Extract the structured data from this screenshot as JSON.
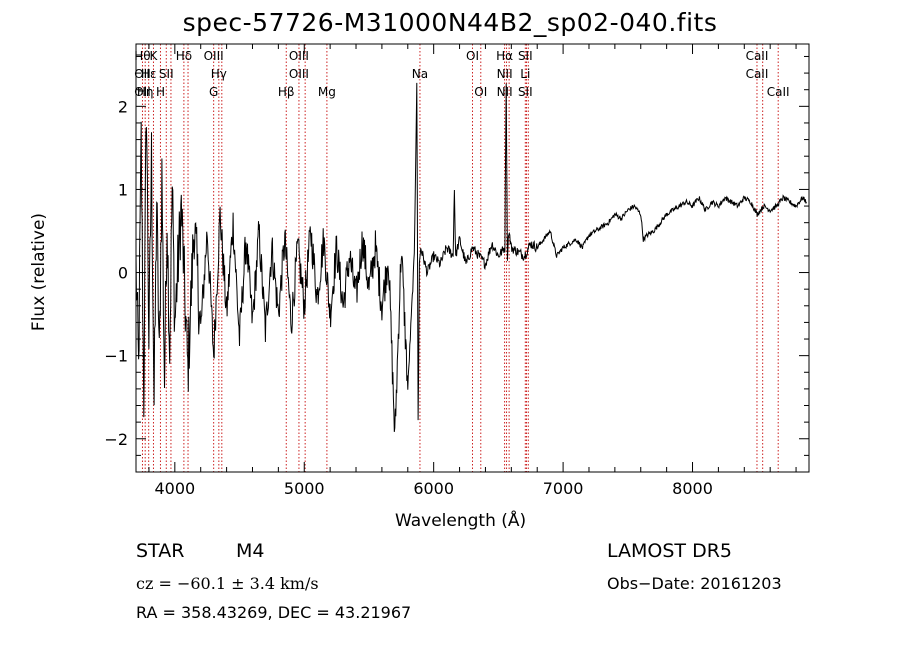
{
  "chart_data": {
    "type": "line",
    "title": "spec-57726-M31000N44B2_sp02-040.fits",
    "xlabel": "Wavelength (Å)",
    "ylabel": "Flux (relative)",
    "xlim": [
      3700,
      8900
    ],
    "ylim": [
      -2.4,
      2.75
    ],
    "xticks": [
      4000,
      5000,
      6000,
      7000,
      8000
    ],
    "yticks": [
      -2,
      -1,
      0,
      1,
      2
    ],
    "grid": false,
    "series": [
      {
        "style": "black line",
        "x": [
          3700,
          3720,
          3740,
          3760,
          3780,
          3800,
          3820,
          3840,
          3860,
          3880,
          3900,
          3920,
          3940,
          3960,
          3980,
          4000,
          4050,
          4100,
          4150,
          4200,
          4250,
          4300,
          4350,
          4400,
          4450,
          4500,
          4550,
          4600,
          4650,
          4700,
          4750,
          4800,
          4850,
          4900,
          4950,
          5000,
          5050,
          5100,
          5150,
          5200,
          5250,
          5300,
          5350,
          5400,
          5450,
          5500,
          5550,
          5600,
          5650,
          5700,
          5750,
          5800,
          5850,
          5870,
          5880,
          5890,
          5900,
          5950,
          6000,
          6050,
          6100,
          6150,
          6160,
          6170,
          6200,
          6250,
          6300,
          6350,
          6400,
          6450,
          6500,
          6550,
          6560,
          6570,
          6580,
          6600,
          6650,
          6700,
          6750,
          6800,
          6850,
          6900,
          6950,
          7000,
          7050,
          7100,
          7150,
          7200,
          7250,
          7300,
          7350,
          7400,
          7450,
          7500,
          7550,
          7600,
          7620,
          7650,
          7700,
          7750,
          7800,
          7850,
          7900,
          7950,
          8000,
          8050,
          8100,
          8150,
          8200,
          8250,
          8300,
          8350,
          8400,
          8450,
          8500,
          8550,
          8600,
          8650,
          8700,
          8750,
          8800,
          8850,
          8880
        ],
        "y": [
          0.1,
          -1.2,
          1.6,
          -1.5,
          2.1,
          -0.8,
          1.4,
          -1.6,
          0.9,
          -1.1,
          1.2,
          -1.3,
          0.7,
          -0.9,
          1.0,
          -0.6,
          0.8,
          -1.2,
          0.6,
          -0.7,
          0.5,
          -1.0,
          0.7,
          -0.5,
          0.6,
          -0.8,
          0.4,
          -0.6,
          0.5,
          -0.7,
          0.3,
          -0.5,
          0.4,
          -0.6,
          0.3,
          -0.4,
          0.5,
          -0.3,
          0.4,
          -0.5,
          0.3,
          -0.4,
          0.2,
          -0.3,
          0.4,
          -0.2,
          0.3,
          -0.4,
          0.2,
          -2.0,
          0.3,
          -1.4,
          0.2,
          2.3,
          -1.8,
          0.1,
          0.3,
          0.0,
          0.2,
          0.1,
          0.3,
          0.2,
          1.0,
          0.2,
          0.4,
          0.1,
          0.3,
          0.2,
          0.1,
          0.35,
          0.2,
          0.3,
          2.3,
          0.2,
          0.5,
          0.3,
          0.25,
          0.2,
          0.35,
          0.3,
          0.4,
          0.5,
          0.2,
          0.3,
          0.35,
          0.4,
          0.3,
          0.45,
          0.5,
          0.55,
          0.6,
          0.7,
          0.65,
          0.75,
          0.8,
          0.7,
          0.4,
          0.45,
          0.5,
          0.6,
          0.7,
          0.75,
          0.8,
          0.85,
          0.8,
          0.9,
          0.75,
          0.85,
          0.8,
          0.9,
          0.85,
          0.8,
          0.9,
          0.85,
          0.7,
          0.8,
          0.75,
          0.8,
          0.9,
          0.85,
          0.8,
          0.9,
          0.85
        ]
      }
    ],
    "line_markers": [
      {
        "x": 3750,
        "labels": [
          "Hθ",
          "OII",
          "OII"
        ],
        "rows": [
          0,
          1,
          2
        ]
      },
      {
        "x": 3771,
        "labels": [
          "Hη"
        ],
        "rows": [
          2
        ]
      },
      {
        "x": 3798,
        "labels": [
          "Hε"
        ],
        "rows": [
          1
        ]
      },
      {
        "x": 3835,
        "labels": [
          "K"
        ],
        "rows": [
          0
        ]
      },
      {
        "x": 3889,
        "labels": [
          "H"
        ],
        "rows": [
          2
        ]
      },
      {
        "x": 3934,
        "labels": [
          "SII"
        ],
        "rows": [
          1
        ]
      },
      {
        "x": 3970,
        "labels": [],
        "rows": []
      },
      {
        "x": 4070,
        "labels": [
          "Hδ"
        ],
        "rows": [
          0
        ]
      },
      {
        "x": 4102,
        "labels": [],
        "rows": []
      },
      {
        "x": 4300,
        "labels": [
          "OIII",
          "G"
        ],
        "rows": [
          0,
          2
        ]
      },
      {
        "x": 4340,
        "labels": [
          "Hγ"
        ],
        "rows": [
          1
        ]
      },
      {
        "x": 4363,
        "labels": [],
        "rows": []
      },
      {
        "x": 4861,
        "labels": [
          "Hβ"
        ],
        "rows": [
          2
        ]
      },
      {
        "x": 4959,
        "labels": [
          "OIII",
          "OIII"
        ],
        "rows": [
          0,
          1
        ]
      },
      {
        "x": 5007,
        "labels": [],
        "rows": []
      },
      {
        "x": 5175,
        "labels": [
          "Mg"
        ],
        "rows": [
          2
        ]
      },
      {
        "x": 5894,
        "labels": [
          "Na"
        ],
        "rows": [
          1
        ]
      },
      {
        "x": 6300,
        "labels": [
          "OI"
        ],
        "rows": [
          0
        ]
      },
      {
        "x": 6364,
        "labels": [
          "OI"
        ],
        "rows": [
          2
        ]
      },
      {
        "x": 6548,
        "labels": [
          "Hα",
          "NII",
          "NII"
        ],
        "rows": [
          0,
          1,
          2
        ]
      },
      {
        "x": 6563,
        "labels": [],
        "rows": []
      },
      {
        "x": 6583,
        "labels": [],
        "rows": []
      },
      {
        "x": 6708,
        "labels": [
          "SII",
          "Li",
          "SII"
        ],
        "rows": [
          0,
          1,
          2
        ]
      },
      {
        "x": 6717,
        "labels": [],
        "rows": []
      },
      {
        "x": 6731,
        "labels": [],
        "rows": []
      },
      {
        "x": 8498,
        "labels": [
          "CaII",
          "CaII"
        ],
        "rows": [
          0,
          1
        ]
      },
      {
        "x": 8542,
        "labels": [],
        "rows": []
      },
      {
        "x": 8662,
        "labels": [
          "CaII"
        ],
        "rows": [
          2
        ]
      }
    ]
  },
  "info": {
    "class_label": "STAR",
    "subclass": "M4",
    "survey": "LAMOST  DR5",
    "cz_text": "cz = −60.1 ± 3.4 km/s",
    "obs_date": "Obs−Date: 20161203",
    "coords": "RA = 358.43269, DEC =  43.21967"
  },
  "colors": {
    "axis": "#000000",
    "spectrum": "#000000",
    "marker_line": "#cc2222"
  }
}
